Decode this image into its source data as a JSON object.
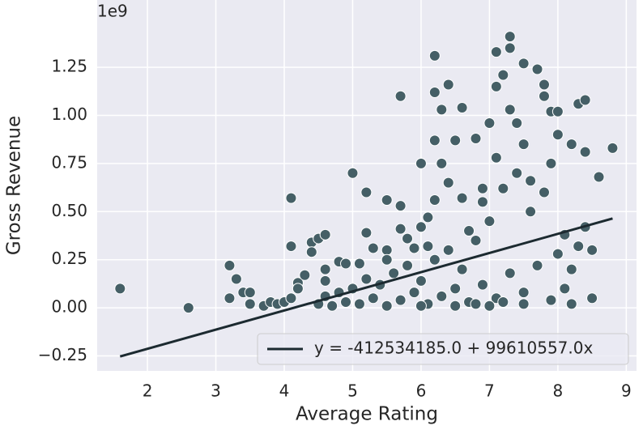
{
  "chart_data": {
    "type": "scatter",
    "x_label": "Average Rating",
    "y_label": "Gross Revenue",
    "y_offset_label": "1e9",
    "xlim": [
      1.265,
      9.15
    ],
    "ylim": [
      -0.328,
      1.6
    ],
    "xticks": [
      2,
      3,
      4,
      5,
      6,
      7,
      8,
      9
    ],
    "yticks": [
      {
        "value": -0.25,
        "label": "−0.25"
      },
      {
        "value": 0,
        "label": "0.00"
      },
      0.25,
      {
        "value": 0.5,
        "label": "0.50"
      },
      0.75,
      {
        "value": 1,
        "label": "1.00"
      },
      1.25
    ],
    "grid": true,
    "legend_position": "lower right",
    "series": [
      {
        "kind": "scatter",
        "color": "#455f66",
        "x": [
          1.6,
          2.6,
          3.2,
          3.2,
          3.3,
          3.4,
          3.5,
          3.5,
          3.7,
          3.8,
          3.9,
          4.0,
          4.1,
          4.1,
          4.1,
          4.2,
          4.2,
          4.3,
          4.4,
          4.4,
          4.5,
          4.6,
          4.6,
          4.6,
          4.8,
          4.9,
          5.0,
          5.1,
          5.2,
          5.2,
          5.3,
          5.5,
          5.5,
          5.7,
          5.7,
          5.7,
          5.8,
          5.9,
          6.0,
          6.0,
          6.1,
          6.2,
          6.2,
          6.2,
          6.2,
          6.3,
          6.3,
          6.4,
          6.5,
          6.6,
          6.6,
          6.8,
          6.9,
          7.0,
          7.1,
          7.1,
          7.2,
          7.3,
          7.3,
          7.3,
          7.4,
          7.5,
          7.5,
          7.7,
          7.8,
          7.8,
          7.9,
          8.0,
          8.0,
          8.2,
          8.3,
          8.4,
          8.4,
          8.6,
          8.8,
          8.5,
          8.4,
          8.3,
          8.5,
          8.1,
          8.2,
          4.5,
          4.6,
          4.7,
          4.8,
          4.9,
          5.0,
          5.1,
          5.2,
          5.3,
          5.4,
          5.5,
          5.6,
          5.7,
          5.8,
          5.9,
          6.0,
          6.1,
          6.2,
          6.3,
          6.4,
          6.5,
          6.6,
          6.7,
          6.8,
          6.9,
          7.0,
          7.1,
          7.2,
          7.3,
          7.4,
          7.5,
          7.6,
          7.7,
          7.8,
          7.9,
          8.0,
          8.1,
          8.2,
          6.0,
          6.5,
          7.0,
          7.5,
          6.8,
          7.2,
          5.5,
          6.1,
          6.7,
          7.1,
          7.6,
          7.9,
          6.4,
          6.9
        ],
        "values": [
          0.1,
          0.0,
          0.22,
          0.05,
          0.15,
          0.08,
          0.08,
          0.02,
          0.01,
          0.03,
          0.02,
          0.03,
          0.57,
          0.32,
          0.05,
          0.13,
          0.1,
          0.17,
          0.34,
          0.29,
          0.36,
          0.38,
          0.2,
          0.14,
          0.24,
          0.23,
          0.7,
          0.23,
          0.6,
          0.39,
          0.31,
          0.56,
          0.3,
          1.1,
          0.53,
          0.41,
          0.36,
          0.31,
          0.75,
          0.42,
          0.47,
          1.31,
          1.12,
          0.87,
          0.56,
          1.03,
          0.75,
          1.16,
          0.87,
          1.04,
          0.57,
          0.88,
          0.55,
          0.96,
          1.33,
          1.15,
          1.21,
          1.41,
          1.35,
          1.03,
          0.96,
          1.27,
          0.85,
          1.24,
          1.1,
          1.16,
          1.02,
          1.02,
          0.9,
          0.85,
          1.06,
          1.08,
          0.81,
          0.68,
          0.83,
          0.3,
          0.42,
          0.32,
          0.05,
          0.38,
          0.2,
          0.02,
          0.06,
          0.01,
          0.08,
          0.03,
          0.1,
          0.02,
          0.15,
          0.05,
          0.12,
          0.01,
          0.18,
          0.04,
          0.22,
          0.08,
          0.14,
          0.02,
          0.25,
          0.06,
          0.3,
          0.1,
          0.2,
          0.03,
          0.35,
          0.12,
          0.45,
          0.05,
          0.62,
          0.18,
          0.7,
          0.08,
          0.5,
          0.22,
          0.6,
          0.04,
          0.28,
          0.1,
          0.02,
          0.01,
          0.01,
          0.01,
          0.02,
          0.02,
          0.03,
          0.25,
          0.32,
          0.4,
          0.78,
          0.66,
          0.75,
          0.65,
          0.62
        ]
      },
      {
        "kind": "line",
        "name": "y = -412534185.0 + 99610557.0x",
        "color": "#1c2a30",
        "x": [
          1.6,
          8.8
        ],
        "values": [
          -0.253,
          0.464
        ]
      }
    ]
  }
}
